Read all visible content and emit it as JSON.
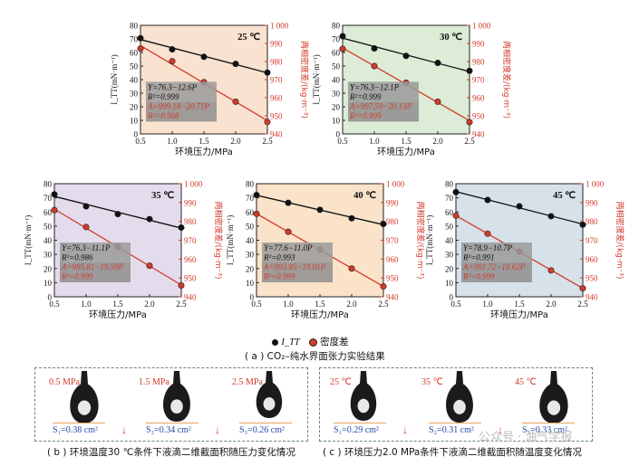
{
  "chart_data": [
    {
      "type": "scatter",
      "title": "25 ℃",
      "xlabel": "环境压力/MPa",
      "ylabel": "I_TT(mN·m⁻¹)",
      "y2label": "两相密度差/(kg·m⁻³)",
      "xlim": [
        0.5,
        2.5
      ],
      "ylim": [
        0,
        80
      ],
      "y2lim": [
        940,
        1000
      ],
      "x": [
        0.5,
        1.0,
        1.5,
        2.0,
        2.5
      ],
      "series": [
        {
          "name": "I_TT",
          "axis": "left",
          "color": "#111111",
          "values": [
            70.5,
            62.3,
            56.8,
            51.6,
            45.2
          ]
        },
        {
          "name": "密度差",
          "axis": "right",
          "color": "#d23a2a",
          "values": [
            987.2,
            980.2,
            968.6,
            957.8,
            946.6
          ]
        }
      ],
      "annotations": [
        "Y=76.3−12.6P",
        "R²=0.999",
        "A=999.18−20.71P",
        "R²=0.998"
      ],
      "bg": "#f9e2cf"
    },
    {
      "type": "scatter",
      "title": "30 ℃",
      "xlabel": "环境压力/MPa",
      "ylabel": "I_TT(mN·m⁻¹)",
      "y2label": "两相密度差/(kg·m⁻³)",
      "xlim": [
        0.5,
        2.5
      ],
      "ylim": [
        0,
        80
      ],
      "y2lim": [
        940,
        1000
      ],
      "x": [
        0.5,
        1.0,
        1.5,
        2.0,
        2.5
      ],
      "series": [
        {
          "name": "I_TT",
          "axis": "left",
          "color": "#111111",
          "values": [
            72.0,
            63.0,
            57.5,
            52.3,
            46.5
          ]
        },
        {
          "name": "密度差",
          "axis": "right",
          "color": "#d23a2a",
          "values": [
            987.0,
            977.5,
            968.3,
            957.8,
            946.5
          ]
        }
      ],
      "annotations": [
        "Y=76.3−12.1P",
        "R²=0.999",
        "A=997.59−20.13P",
        "R²=0.999"
      ],
      "bg": "#dcecd6"
    },
    {
      "type": "scatter",
      "title": "35 ℃",
      "xlabel": "环境压力/MPa",
      "ylabel": "I_TT(mN·m⁻¹)",
      "y2label": "两相密度差/(kg·m⁻³)",
      "xlim": [
        0.5,
        2.5
      ],
      "ylim": [
        0,
        80
      ],
      "y2lim": [
        940,
        1000
      ],
      "x": [
        0.5,
        1.0,
        1.5,
        2.0,
        2.5
      ],
      "series": [
        {
          "name": "I_TT",
          "axis": "left",
          "color": "#111111",
          "values": [
            72.5,
            64.0,
            58.5,
            55.0,
            49.0
          ]
        },
        {
          "name": "密度差",
          "axis": "right",
          "color": "#d23a2a",
          "values": [
            986.0,
            977.0,
            966.5,
            956.5,
            946.0
          ]
        }
      ],
      "annotations": [
        "Y=76.3−11.1P",
        "R²=0.986",
        "A=995.81−19.59P",
        "R²=0.999"
      ],
      "bg": "#e4dcec"
    },
    {
      "type": "scatter",
      "title": "40 ℃",
      "xlabel": "环境压力/MPa",
      "ylabel": "I_TT(mN·m⁻¹)",
      "y2label": "两相密度差/(kg·m⁻³)",
      "xlim": [
        0.5,
        2.5
      ],
      "ylim": [
        0,
        80
      ],
      "y2lim": [
        940,
        1000
      ],
      "x": [
        0.5,
        1.0,
        1.5,
        2.0,
        2.5
      ],
      "series": [
        {
          "name": "I_TT",
          "axis": "left",
          "color": "#111111",
          "values": [
            72.0,
            66.5,
            61.5,
            55.5,
            51.5
          ]
        },
        {
          "name": "密度差",
          "axis": "right",
          "color": "#d23a2a",
          "values": [
            984.0,
            974.5,
            965.0,
            955.0,
            945.5
          ]
        }
      ],
      "annotations": [
        "Y=77.6−11.0P",
        "R²=0.993",
        "A=993.85−19.01P",
        "R²=0.999"
      ],
      "bg": "#fbe3c9"
    },
    {
      "type": "scatter",
      "title": "45 ℃",
      "xlabel": "环境压力/MPa",
      "ylabel": "I_TT(mN·m⁻¹)",
      "y2label": "两相密度差/(kg·m⁻³)",
      "xlim": [
        0.5,
        2.5
      ],
      "ylim": [
        0,
        80
      ],
      "y2lim": [
        940,
        1000
      ],
      "x": [
        0.5,
        1.0,
        1.5,
        2.0,
        2.5
      ],
      "series": [
        {
          "name": "I_TT",
          "axis": "left",
          "color": "#111111",
          "values": [
            74.0,
            68.5,
            64.0,
            57.0,
            51.0
          ]
        },
        {
          "name": "密度差",
          "axis": "right",
          "color": "#d23a2a",
          "values": [
            983.0,
            973.5,
            964.0,
            954.0,
            944.5
          ]
        }
      ],
      "annotations": [
        "Y=78.9−10.7P",
        "R²=0.991",
        "A=991.72−18.62P",
        "R²=0.999"
      ],
      "bg": "#d6e1ea"
    }
  ],
  "ticks": {
    "x": [
      "0.5",
      "1.0",
      "1.5",
      "2.0",
      "2.5"
    ],
    "yleft": [
      "0",
      "10",
      "20",
      "30",
      "40",
      "50",
      "60",
      "70",
      "80"
    ],
    "yright": [
      "940",
      "950",
      "960",
      "970",
      "980",
      "990",
      "1 000"
    ]
  },
  "legend": {
    "s1": "I_TT",
    "s2": "密度差"
  },
  "captions": {
    "a": "( a ) CO₂–纯水界面张力实验结果",
    "b": "( b ) 环境温度30 ℃条件下液滴二维截面积随压力变化情况",
    "c": "( c ) 环境压力2.0 MPa条件下液滴二维截面积随温度变化情况"
  },
  "panel_b": {
    "labels": [
      "0.5 MPa",
      "1.5 MPa",
      "2.5 MPa"
    ],
    "areas": [
      "S₁=0.38 cm²",
      "S₂=0.34 cm²",
      "S₃=0.26 cm²"
    ]
  },
  "panel_c": {
    "labels": [
      "25 ℃",
      "35 ℃",
      "45 ℃"
    ],
    "areas": [
      "S₁=0.29 cm²",
      "S₂=0.31 cm²",
      "S₃=0.33 cm²"
    ]
  },
  "watermark": "公众号 · 油气学报"
}
